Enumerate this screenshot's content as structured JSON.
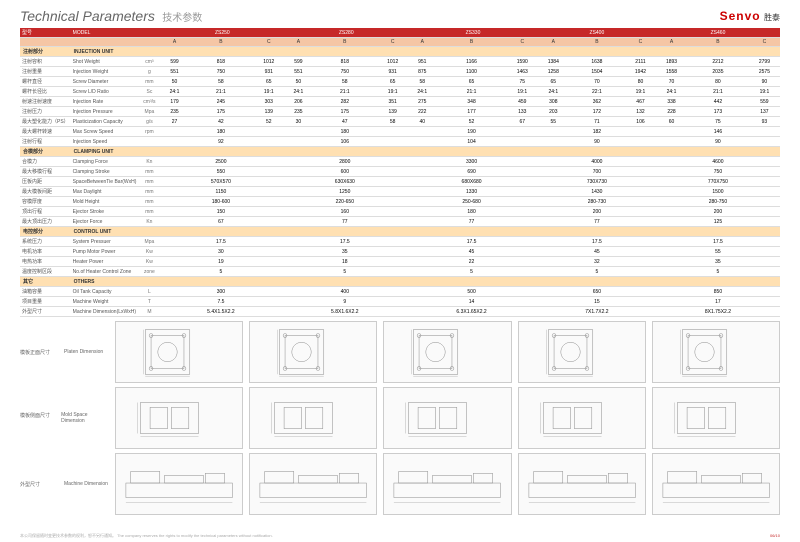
{
  "header": {
    "title_en": "Technical Parameters",
    "title_cn": "技术参数",
    "logo": "Senvo",
    "logo_cn": "胜泰"
  },
  "colors": {
    "brand": "#c62828",
    "section": "#ffe0b2",
    "abc": "#f5c6a5"
  },
  "models": [
    "ZS250",
    "ZS280",
    "ZS330",
    "ZS400",
    "ZS460"
  ],
  "subcols": [
    "A",
    "B",
    "C"
  ],
  "sections": [
    {
      "cn": "注射部分",
      "en": "INJECTION UNIT",
      "rows": [
        {
          "cn": "注射容积",
          "en": "Shot Weight",
          "unit": "cm³",
          "v": [
            "599",
            "818",
            "1012",
            "599",
            "818",
            "1012",
            "951",
            "1166",
            "1590",
            "1384",
            "1638",
            "2111",
            "1893",
            "2212",
            "2799"
          ]
        },
        {
          "cn": "注射重量",
          "en": "Injection Weight",
          "unit": "g",
          "v": [
            "551",
            "750",
            "931",
            "551",
            "750",
            "931",
            "875",
            "1100",
            "1463",
            "1258",
            "1504",
            "1942",
            "1558",
            "2035",
            "2575"
          ]
        },
        {
          "cn": "螺杆直径",
          "en": "Screw Diameter",
          "unit": "mm",
          "v": [
            "50",
            "58",
            "65",
            "50",
            "58",
            "65",
            "58",
            "65",
            "75",
            "65",
            "70",
            "80",
            "70",
            "80",
            "90"
          ]
        },
        {
          "cn": "螺杆长径比",
          "en": "Screw L/D Ratio",
          "unit": "Sc",
          "v": [
            "24:1",
            "21:1",
            "19:1",
            "24:1",
            "21:1",
            "19:1",
            "24:1",
            "21:1",
            "19:1",
            "24:1",
            "22:1",
            "19:1",
            "24:1",
            "21:1",
            "19:1"
          ]
        },
        {
          "cn": "射速注射速度",
          "en": "Injection Rate",
          "unit": "cm³/s",
          "v": [
            "179",
            "245",
            "303",
            "206",
            "282",
            "351",
            "275",
            "348",
            "459",
            "308",
            "362",
            "467",
            "338",
            "442",
            "559"
          ]
        },
        {
          "cn": "注射压力",
          "en": "Injection Pressure",
          "unit": "Mpa",
          "v": [
            "235",
            "175",
            "139",
            "235",
            "175",
            "139",
            "222",
            "177",
            "133",
            "203",
            "172",
            "132",
            "228",
            "173",
            "137"
          ]
        },
        {
          "cn": "最大塑化能力（PS）",
          "en": "Plasticization Capacity",
          "unit": "g/s",
          "v": [
            "27",
            "42",
            "52",
            "30",
            "47",
            "58",
            "40",
            "52",
            "67",
            "55",
            "71",
            "106",
            "60",
            "75",
            "93"
          ]
        },
        {
          "cn": "最大螺杆转速",
          "en": "Max Screw Speed",
          "unit": "rpm",
          "v": [
            "",
            "180",
            "",
            "",
            "180",
            "",
            "",
            "190",
            "",
            "",
            "182",
            "",
            "",
            "146",
            ""
          ]
        },
        {
          "cn": "注射行程",
          "en": "Injection Speed",
          "unit": "",
          "v": [
            "",
            "92",
            "",
            "",
            "106",
            "",
            "",
            "104",
            "",
            "",
            "90",
            "",
            "",
            "90",
            ""
          ]
        }
      ]
    },
    {
      "cn": "合模部分",
      "en": "CLAMPING UNIT",
      "rows": [
        {
          "cn": "合模力",
          "en": "Clamping Force",
          "unit": "Kn",
          "v": [
            "",
            "2500",
            "",
            "",
            "2800",
            "",
            "",
            "3300",
            "",
            "",
            "4000",
            "",
            "",
            "4600",
            ""
          ]
        },
        {
          "cn": "最大移模行程",
          "en": "Clamping Stroke",
          "unit": "mm",
          "v": [
            "",
            "550",
            "",
            "",
            "600",
            "",
            "",
            "690",
            "",
            "",
            "700",
            "",
            "",
            "750",
            ""
          ]
        },
        {
          "cn": "压板内距",
          "en": "SpaceBetweenTie Bar(WxH)",
          "unit": "mm",
          "v": [
            "",
            "570X570",
            "",
            "",
            "630X630",
            "",
            "",
            "680X680",
            "",
            "",
            "730X730",
            "",
            "",
            "770X750",
            ""
          ]
        },
        {
          "cn": "最大模板间距",
          "en": "Max Daylight",
          "unit": "mm",
          "v": [
            "",
            "1150",
            "",
            "",
            "1250",
            "",
            "",
            "1330",
            "",
            "",
            "1430",
            "",
            "",
            "1500",
            ""
          ]
        },
        {
          "cn": "容模厚度",
          "en": "Mold Height",
          "unit": "mm",
          "v": [
            "",
            "180-600",
            "",
            "",
            "220-650",
            "",
            "",
            "250-680",
            "",
            "",
            "280-730",
            "",
            "",
            "280-750",
            ""
          ]
        },
        {
          "cn": "顶出行程",
          "en": "Ejector Stroke",
          "unit": "mm",
          "v": [
            "",
            "150",
            "",
            "",
            "160",
            "",
            "",
            "180",
            "",
            "",
            "200",
            "",
            "",
            "200",
            ""
          ]
        },
        {
          "cn": "最大顶出压力",
          "en": "Ejector Force",
          "unit": "Kn",
          "v": [
            "",
            "67",
            "",
            "",
            "77",
            "",
            "",
            "77",
            "",
            "",
            "77",
            "",
            "",
            "125",
            ""
          ]
        }
      ]
    },
    {
      "cn": "电控部分",
      "en": "CONTROL UNIT",
      "rows": [
        {
          "cn": "系统压力",
          "en": "System Pressuer",
          "unit": "Mpa",
          "v": [
            "",
            "17.5",
            "",
            "",
            "17.5",
            "",
            "",
            "17.5",
            "",
            "",
            "17.5",
            "",
            "",
            "17.5",
            ""
          ]
        },
        {
          "cn": "电机功率",
          "en": "Pump Motor Power",
          "unit": "Kw",
          "v": [
            "",
            "30",
            "",
            "",
            "35",
            "",
            "",
            "45",
            "",
            "",
            "45",
            "",
            "",
            "55",
            ""
          ]
        },
        {
          "cn": "电热功率",
          "en": "Heater Power",
          "unit": "Kw",
          "v": [
            "",
            "19",
            "",
            "",
            "18",
            "",
            "",
            "22",
            "",
            "",
            "32",
            "",
            "",
            "35",
            ""
          ]
        },
        {
          "cn": "温度控制区段",
          "en": "No.of Heater Control Zone",
          "unit": "zone",
          "v": [
            "",
            "5",
            "",
            "",
            "5",
            "",
            "",
            "5",
            "",
            "",
            "5",
            "",
            "",
            "5",
            ""
          ]
        }
      ]
    },
    {
      "cn": "其它",
      "en": "OTHERS",
      "rows": [
        {
          "cn": "油箱容量",
          "en": "Oil Tank Capacity",
          "unit": "L",
          "v": [
            "",
            "300",
            "",
            "",
            "400",
            "",
            "",
            "500",
            "",
            "",
            "650",
            "",
            "",
            "850",
            ""
          ]
        },
        {
          "cn": "项目重量",
          "en": "Machine Weight",
          "unit": "T",
          "v": [
            "",
            "7.5",
            "",
            "",
            "9",
            "",
            "",
            "14",
            "",
            "",
            "15",
            "",
            "",
            "17",
            ""
          ]
        },
        {
          "cn": "外型尺寸",
          "en": "Machine Dimension(LxWxH)",
          "unit": "M",
          "v": [
            "",
            "5.4X1.5X2.2",
            "",
            "",
            "5.8X1.6X2.2",
            "",
            "",
            "6.3X1.65X2.2",
            "",
            "",
            "7X1.7X2.2",
            "",
            "",
            "8X1.75X2.2",
            ""
          ]
        }
      ]
    }
  ],
  "diagram_rows": [
    {
      "cn": "模板正面尺寸",
      "en": "Platen Dimension"
    },
    {
      "cn": "模板侧面尺寸",
      "en": "Mold Space Dimension"
    },
    {
      "cn": "外型尺寸",
      "en": "Machine Dimension"
    }
  ],
  "footer": {
    "note": "本公司保留随时变更技术参数的权利，恕不另行通知。 The company reserves the rights to modify the technical parameters without notification.",
    "page": "06/10"
  }
}
